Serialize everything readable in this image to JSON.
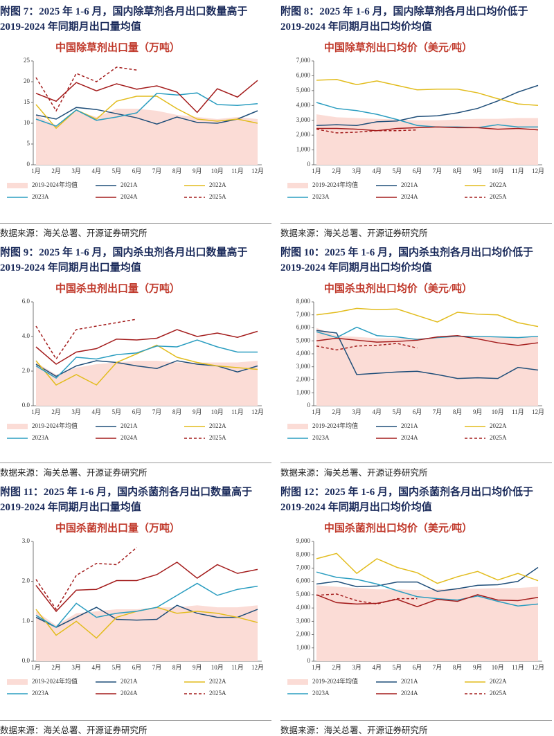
{
  "figures": [
    {
      "caption": [
        "附图 7：2025 年 1-6 月，国内除草剂各月出口数量高于",
        "2019-2024 年同期月出口量均值"
      ],
      "source": "数据来源：海关总署、开源证券研究所"
    },
    {
      "caption": [
        "附图 8：2025 年 1-6 月，国内除草剂各月出口均价低于",
        "2019-2024 年同期月出口均价均值"
      ],
      "source": "数据来源：海关总署、开源证券研究所"
    },
    {
      "caption": [
        "附图 9：2025 年 1-6 月，国内杀虫剂各月出口数量高于",
        "2019-2024 年同期月出口量均值"
      ],
      "source": "数据来源：海关总署、开源证券研究所"
    },
    {
      "caption": [
        "附图 10：2025 年 1-6 月，国内杀虫剂各月出口均价低于",
        "2019-2024 年同期月出口均价均值"
      ],
      "source": "数据来源：海关总署、开源证券研究所"
    },
    {
      "caption": [
        "附图 11：2025 年 1-6 月，国内杀菌剂各月出口数量高于",
        "2019-2024 年同期月出口量均值"
      ],
      "source": "数据来源：海关总署、开源证券研究所"
    },
    {
      "caption": [
        "附图 12：2025 年 1-6 月，国内杀菌剂各月出口均价低于",
        "2019-2024 年同期月出口均价均值"
      ],
      "source": "数据来源：海关总署、开源证券研究所"
    }
  ],
  "chart_data": [
    {
      "type": "line",
      "title": "中国除草剂出口量（万吨）",
      "categories": [
        "1月",
        "2月",
        "3月",
        "4月",
        "5月",
        "6月",
        "7月",
        "8月",
        "9月",
        "10月",
        "11月",
        "12月"
      ],
      "ylim": [
        0,
        25
      ],
      "yticks": [
        0,
        5,
        10,
        15,
        20,
        25
      ],
      "series": [
        {
          "name": "2019-2024年均值",
          "color": "#fbdcd6",
          "area": true,
          "values": [
            12,
            9.5,
            13,
            11.5,
            13.5,
            13.5,
            13,
            12,
            11.5,
            11,
            11.5,
            11
          ]
        },
        {
          "name": "2021A",
          "color": "#1f4e79",
          "values": [
            12,
            11,
            13.8,
            13.3,
            12.3,
            11.3,
            9.8,
            11.5,
            10.2,
            10,
            11,
            13
          ]
        },
        {
          "name": "2022A",
          "color": "#e2bc1d",
          "values": [
            14.5,
            8.8,
            13.2,
            11,
            15.3,
            16.5,
            16.5,
            13.5,
            11,
            10.5,
            11,
            10
          ]
        },
        {
          "name": "2023A",
          "color": "#2a9dc0",
          "values": [
            11,
            9.3,
            13.2,
            10.7,
            11.5,
            12.5,
            17.2,
            16.8,
            17.3,
            14.5,
            14.3,
            14.7
          ]
        },
        {
          "name": "2024A",
          "color": "#a31b1b",
          "values": [
            17.2,
            15.3,
            19.8,
            17.8,
            19.5,
            18.2,
            19,
            17.5,
            12.6,
            18.3,
            16.3,
            20.3
          ]
        },
        {
          "name": "2025A",
          "color": "#a31b1b",
          "dashed": true,
          "values": [
            21,
            13,
            22,
            20,
            23.5,
            22.8,
            null,
            null,
            null,
            null,
            null,
            null
          ]
        }
      ]
    },
    {
      "type": "line",
      "title": "中国除草剂出口均价（美元/吨）",
      "categories": [
        "1月",
        "2月",
        "3月",
        "4月",
        "5月",
        "6月",
        "7月",
        "8月",
        "9月",
        "10月",
        "11月",
        "12月"
      ],
      "ylim": [
        0,
        7000
      ],
      "yticks": [
        0,
        {
          "value": 1000,
          "label": "1,000"
        },
        {
          "value": 2000,
          "label": "2,000"
        },
        {
          "value": 3000,
          "label": "3,000"
        },
        {
          "value": 4000,
          "label": "4,000"
        },
        {
          "value": 5000,
          "label": "5,000"
        },
        {
          "value": 6000,
          "label": "6,000"
        },
        {
          "value": 7000,
          "label": "7,000"
        }
      ],
      "series": [
        {
          "name": "2019-2024年均值",
          "color": "#fbdcd6",
          "area": true,
          "values": [
            3400,
            3200,
            3150,
            3100,
            3050,
            3000,
            3000,
            3050,
            3100,
            3100,
            3150,
            3150
          ]
        },
        {
          "name": "2021A",
          "color": "#1f4e79",
          "values": [
            2650,
            2700,
            2650,
            2900,
            2950,
            3250,
            3300,
            3500,
            3800,
            4300,
            4900,
            5350
          ]
        },
        {
          "name": "2022A",
          "color": "#e2bc1d",
          "values": [
            5700,
            5750,
            5400,
            5650,
            5350,
            5050,
            5100,
            5100,
            4850,
            4450,
            4100,
            4000
          ]
        },
        {
          "name": "2023A",
          "color": "#2a9dc0",
          "values": [
            4200,
            3800,
            3650,
            3400,
            3050,
            2650,
            2550,
            2550,
            2500,
            2700,
            2550,
            2550
          ]
        },
        {
          "name": "2024A",
          "color": "#a31b1b",
          "values": [
            2450,
            2450,
            2400,
            2300,
            2450,
            2500,
            2550,
            2500,
            2500,
            2400,
            2450,
            2350
          ]
        },
        {
          "name": "2025A",
          "color": "#a31b1b",
          "dashed": true,
          "values": [
            2400,
            2150,
            2200,
            2300,
            2300,
            2350,
            null,
            null,
            null,
            null,
            null,
            null
          ]
        }
      ]
    },
    {
      "type": "line",
      "title": "中国杀虫剂出口量（万吨）",
      "categories": [
        "1月",
        "2月",
        "3月",
        "4月",
        "5月",
        "6月",
        "7月",
        "8月",
        "9月",
        "10月",
        "11月",
        "12月"
      ],
      "ylim": [
        0,
        6
      ],
      "yticks": [
        {
          "value": 0,
          "label": "0.0"
        },
        {
          "value": 2,
          "label": "2.0"
        },
        {
          "value": 4,
          "label": "4.0"
        },
        {
          "value": 6,
          "label": "6.0"
        }
      ],
      "series": [
        {
          "name": "2019-2024年均值",
          "color": "#fbdcd6",
          "area": true,
          "values": [
            2.5,
            1.8,
            2.2,
            2.4,
            2.5,
            2.6,
            2.6,
            2.5,
            2.5,
            2.5,
            2.5,
            2.6
          ]
        },
        {
          "name": "2021A",
          "color": "#1f4e79",
          "values": [
            2.4,
            1.7,
            2.3,
            2.6,
            2.5,
            2.3,
            2.15,
            2.6,
            2.4,
            2.3,
            1.95,
            2.3
          ]
        },
        {
          "name": "2022A",
          "color": "#e2bc1d",
          "values": [
            2.6,
            1.2,
            1.8,
            1.2,
            2.5,
            3.0,
            3.5,
            2.8,
            2.5,
            2.3,
            2.2,
            2.1
          ]
        },
        {
          "name": "2023A",
          "color": "#2a9dc0",
          "values": [
            2.3,
            1.6,
            2.8,
            2.7,
            2.95,
            3.05,
            3.45,
            3.4,
            3.8,
            3.4,
            3.1,
            3.1
          ]
        },
        {
          "name": "2024A",
          "color": "#a31b1b",
          "values": [
            3.4,
            2.4,
            3.1,
            3.3,
            3.85,
            3.8,
            3.9,
            4.4,
            4.0,
            4.2,
            3.95,
            4.3
          ]
        },
        {
          "name": "2025A",
          "color": "#a31b1b",
          "dashed": true,
          "values": [
            4.6,
            2.7,
            4.4,
            4.6,
            4.8,
            5.0,
            null,
            null,
            null,
            null,
            null,
            null
          ]
        }
      ]
    },
    {
      "type": "line",
      "title": "中国杀虫剂出口均价（美元/吨）",
      "categories": [
        "1月",
        "2月",
        "3月",
        "4月",
        "5月",
        "6月",
        "7月",
        "8月",
        "9月",
        "10月",
        "11月",
        "12月"
      ],
      "ylim": [
        0,
        8000
      ],
      "yticks": [
        0,
        {
          "value": 1000,
          "label": "1,000"
        },
        {
          "value": 2000,
          "label": "2,000"
        },
        {
          "value": 3000,
          "label": "3,000"
        },
        {
          "value": 4000,
          "label": "4,000"
        },
        {
          "value": 5000,
          "label": "5,000"
        },
        {
          "value": 6000,
          "label": "6,000"
        },
        {
          "value": 7000,
          "label": "7,000"
        },
        {
          "value": 8000,
          "label": "8,000"
        }
      ],
      "series": [
        {
          "name": "2019-2024年均值",
          "color": "#fbdcd6",
          "area": true,
          "values": [
            6000,
            5400,
            5300,
            5200,
            5200,
            5200,
            5250,
            5300,
            5300,
            5300,
            5300,
            5300
          ]
        },
        {
          "name": "2021A",
          "color": "#1f4e79",
          "values": [
            5800,
            5600,
            2400,
            2500,
            2600,
            2650,
            2400,
            2100,
            2150,
            2100,
            2950,
            2750
          ]
        },
        {
          "name": "2022A",
          "color": "#e2bc1d",
          "values": [
            7000,
            7200,
            7500,
            7400,
            7450,
            6950,
            6450,
            7200,
            7050,
            7000,
            6400,
            6100
          ]
        },
        {
          "name": "2023A",
          "color": "#2a9dc0",
          "values": [
            5700,
            5250,
            6050,
            5400,
            5300,
            5100,
            5250,
            5350,
            5350,
            5300,
            5250,
            5350
          ]
        },
        {
          "name": "2024A",
          "color": "#a31b1b",
          "values": [
            5000,
            5200,
            5050,
            4900,
            4950,
            5050,
            5300,
            5400,
            5150,
            4850,
            4650,
            4850
          ]
        },
        {
          "name": "2025A",
          "color": "#a31b1b",
          "dashed": true,
          "values": [
            4600,
            4300,
            4600,
            4650,
            4800,
            4450,
            null,
            null,
            null,
            null,
            null,
            null
          ]
        }
      ]
    },
    {
      "type": "line",
      "title": "中国杀菌剂出口量（万吨）",
      "categories": [
        "1月",
        "2月",
        "3月",
        "4月",
        "5月",
        "6月",
        "7月",
        "8月",
        "9月",
        "10月",
        "11月",
        "12月"
      ],
      "ylim": [
        0,
        3
      ],
      "yticks": [
        {
          "value": 0,
          "label": "0.0"
        },
        {
          "value": 1,
          "label": "1.0"
        },
        {
          "value": 2,
          "label": "2.0"
        },
        {
          "value": 3,
          "label": "3.0"
        }
      ],
      "series": [
        {
          "name": "2019-2024年均值",
          "color": "#fbdcd6",
          "area": true,
          "values": [
            1.25,
            0.9,
            1.2,
            1.25,
            1.3,
            1.3,
            1.35,
            1.35,
            1.4,
            1.35,
            1.35,
            1.4
          ]
        },
        {
          "name": "2021A",
          "color": "#1f4e79",
          "values": [
            1.1,
            0.85,
            1.1,
            1.35,
            1.05,
            1.03,
            1.05,
            1.4,
            1.2,
            1.1,
            1.1,
            1.3
          ]
        },
        {
          "name": "2022A",
          "color": "#e2bc1d",
          "values": [
            1.3,
            0.65,
            1.0,
            0.58,
            1.1,
            1.25,
            1.35,
            1.2,
            1.25,
            1.2,
            1.1,
            0.97
          ]
        },
        {
          "name": "2023A",
          "color": "#2a9dc0",
          "values": [
            1.15,
            0.85,
            1.45,
            1.1,
            1.2,
            1.25,
            1.35,
            1.65,
            1.95,
            1.65,
            1.8,
            1.88
          ]
        },
        {
          "name": "2024A",
          "color": "#a31b1b",
          "values": [
            1.9,
            1.25,
            1.78,
            1.8,
            2.02,
            2.02,
            2.17,
            2.48,
            2.08,
            2.42,
            2.2,
            2.3
          ]
        },
        {
          "name": "2025A",
          "color": "#a31b1b",
          "dashed": true,
          "values": [
            2.05,
            1.3,
            2.15,
            2.45,
            2.42,
            2.85,
            null,
            null,
            null,
            null,
            null,
            null
          ]
        }
      ]
    },
    {
      "type": "line",
      "title": "中国杀菌剂出口均价（美元/吨）",
      "categories": [
        "1月",
        "2月",
        "3月",
        "4月",
        "5月",
        "6月",
        "7月",
        "8月",
        "9月",
        "10月",
        "11月",
        "12月"
      ],
      "ylim": [
        0,
        9000
      ],
      "yticks": [
        0,
        {
          "value": 1000,
          "label": "1,000"
        },
        {
          "value": 2000,
          "label": "2,000"
        },
        {
          "value": 3000,
          "label": "3,000"
        },
        {
          "value": 4000,
          "label": "4,000"
        },
        {
          "value": 5000,
          "label": "5,000"
        },
        {
          "value": 6000,
          "label": "6,000"
        },
        {
          "value": 7000,
          "label": "7,000"
        },
        {
          "value": 8000,
          "label": "8,000"
        },
        {
          "value": 9000,
          "label": "9,000"
        }
      ],
      "series": [
        {
          "name": "2019-2024年均值",
          "color": "#fbdcd6",
          "area": true,
          "values": [
            5700,
            5600,
            5500,
            5400,
            5400,
            5350,
            5400,
            5450,
            5450,
            5500,
            5500,
            5600
          ]
        },
        {
          "name": "2021A",
          "color": "#1f4e79",
          "values": [
            5800,
            6000,
            5600,
            5650,
            5950,
            5950,
            5250,
            5450,
            5700,
            5750,
            6000,
            7050
          ]
        },
        {
          "name": "2022A",
          "color": "#e2bc1d",
          "values": [
            7700,
            8100,
            6600,
            7700,
            7050,
            6650,
            5850,
            6350,
            6750,
            6100,
            6600,
            6050
          ]
        },
        {
          "name": "2023A",
          "color": "#2a9dc0",
          "values": [
            6700,
            6300,
            6150,
            5800,
            5300,
            4850,
            4700,
            4600,
            4900,
            4500,
            4150,
            4300
          ]
        },
        {
          "name": "2024A",
          "color": "#a31b1b",
          "values": [
            5000,
            4400,
            4300,
            4350,
            4650,
            4100,
            4650,
            4500,
            5000,
            4600,
            4550,
            4800
          ]
        },
        {
          "name": "2025A",
          "color": "#a31b1b",
          "dashed": true,
          "values": [
            4950,
            5050,
            4550,
            4300,
            4700,
            4700,
            null,
            null,
            null,
            null,
            null,
            null
          ]
        }
      ]
    }
  ]
}
